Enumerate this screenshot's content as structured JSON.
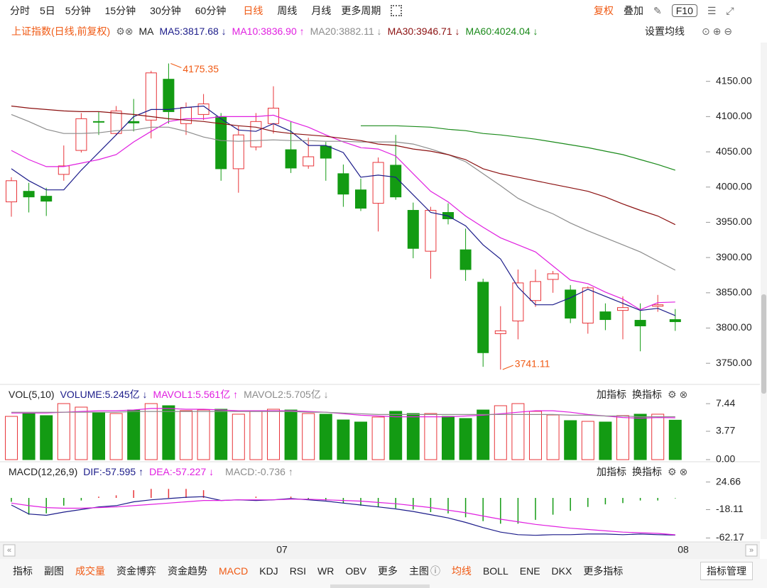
{
  "toolbar": {
    "periods": [
      "分时",
      "5日",
      "5分钟",
      "15分钟",
      "30分钟",
      "60分钟",
      "日线",
      "周线",
      "月线",
      "更多周期"
    ],
    "right": [
      "复权",
      "叠加",
      "F10"
    ]
  },
  "chart_data": [
    {
      "type": "candlestick",
      "title": "上证指数(日线,前复权)",
      "ma_label": "MA",
      "settings_label": "设置均线",
      "open": [
        3979,
        3994,
        3987,
        4018,
        4052,
        4093,
        4076,
        4093,
        4095,
        4153,
        4090,
        4103,
        4100,
        4026,
        4057,
        4090,
        4053,
        4030,
        4058,
        4019,
        3996,
        3977,
        4031,
        3967,
        3909,
        3964,
        3911,
        3865,
        3792,
        3810,
        3839,
        3869,
        3854,
        3807,
        3823,
        3825,
        3811,
        3831,
        3812
      ],
      "high": [
        4014,
        4006,
        3999,
        4059,
        4105,
        4107,
        4115,
        4125,
        4165,
        4175.35,
        4120,
        4132,
        4105,
        4087,
        4105,
        4143,
        4093,
        4070,
        4064,
        4032,
        4012,
        4042,
        4074,
        3978,
        3972,
        3977,
        3941,
        3870,
        3831,
        3883,
        3883,
        3881,
        3861,
        3859,
        3835,
        3845,
        3835,
        3847,
        3827
      ],
      "low": [
        3958,
        3964,
        3959,
        4009,
        4049,
        4074,
        4074,
        4079,
        4069,
        4090,
        4074,
        4095,
        4009,
        3992,
        4052,
        4076,
        4020,
        4026,
        4009,
        3972,
        3966,
        3937,
        3982,
        3899,
        3870,
        3947,
        3867,
        3745,
        3741.11,
        3784,
        3830,
        3850,
        3807,
        3792,
        3797,
        3784,
        3767,
        3823,
        3796
      ],
      "close": [
        4009,
        3986,
        3980,
        4030,
        4097,
        4092,
        4108,
        4091,
        4162,
        4107,
        4113,
        4118,
        4026,
        4074,
        4093,
        4112,
        4027,
        4043,
        4041,
        3990,
        3970,
        4035,
        3986,
        3913,
        3967,
        3955,
        3883,
        3765,
        3796,
        3864,
        3866,
        3877,
        3814,
        3857,
        3812,
        3829,
        3803,
        3833,
        3809
      ],
      "up_color": "#e8353a",
      "down_color": "#139b13",
      "annotations": [
        "4175.35",
        "3741.11"
      ],
      "series": [
        {
          "name": "MA5:3817.68 ↓",
          "color": "#1c1c8a",
          "values": [
            4026,
            4009,
            3996,
            3996,
            4024,
            4049,
            4074,
            4100,
            4110,
            4110,
            4113,
            4115,
            4097,
            4081,
            4079,
            4090,
            4079,
            4059,
            4059,
            4049,
            4014,
            4017,
            4014,
            3989,
            3964,
            3959,
            3945,
            3918,
            3898,
            3858,
            3833,
            3833,
            3843,
            3855,
            3845,
            3835,
            3825,
            3828,
            3817.68
          ]
        },
        {
          "name": "MA10:3836.90 ↑",
          "color": "#e01fe0",
          "values": [
            4052,
            4039,
            4029,
            4029,
            4034,
            4039,
            4046,
            4064,
            4079,
            4093,
            4097,
            4097,
            4100,
            4100,
            4100,
            4102,
            4093,
            4085,
            4074,
            4064,
            4056,
            4054,
            4044,
            4019,
            3994,
            3979,
            3959,
            3943,
            3928,
            3918,
            3908,
            3888,
            3868,
            3863,
            3851,
            3841,
            3826,
            3836,
            3836.9
          ]
        },
        {
          "name": "MA20:3882.11 ↓",
          "color": "#8c8c8c",
          "values": [
            4103,
            4093,
            4082,
            4076,
            4076,
            4077,
            4080,
            4081,
            4085,
            4085,
            4079,
            4071,
            4066,
            4065,
            4066,
            4067,
            4066,
            4066,
            4065,
            4065,
            4064,
            4064,
            4064,
            4061,
            4054,
            4046,
            4036,
            4019,
            4002,
            3984,
            3972,
            3962,
            3949,
            3938,
            3928,
            3918,
            3908,
            3895,
            3882.11
          ]
        },
        {
          "name": "MA30:3946.71 ↓",
          "color": "#8b1010",
          "values": [
            4115,
            4112,
            4110,
            4108,
            4107,
            4107,
            4105,
            4103,
            4100,
            4097,
            4095,
            4093,
            4090,
            4087,
            4085,
            4079,
            4076,
            4074,
            4072,
            4069,
            4066,
            4061,
            4059,
            4054,
            4051,
            4046,
            4039,
            4026,
            4019,
            4014,
            4009,
            4004,
            3999,
            3994,
            3986,
            3976,
            3967,
            3959,
            3946.71
          ]
        },
        {
          "name": "MA60:4024.04 ↓",
          "color": "#1a8a1a",
          "values": [
            null,
            null,
            null,
            null,
            null,
            null,
            null,
            null,
            null,
            null,
            null,
            null,
            null,
            null,
            null,
            null,
            null,
            null,
            null,
            null,
            4087,
            4087,
            4087,
            4086,
            4085,
            4082,
            4080,
            4076,
            4074,
            4071,
            4068,
            4064,
            4060,
            4056,
            4051,
            4046,
            4039,
            4032,
            4024.04
          ]
        }
      ],
      "ylim": [
        3722,
        4200
      ],
      "yticks": [
        {
          "value": 3750,
          "label": "3750.00"
        },
        {
          "value": 3800,
          "label": "3800.00"
        },
        {
          "value": 3850,
          "label": "3850.00"
        },
        {
          "value": 3900,
          "label": "3900.00"
        },
        {
          "value": 3950,
          "label": "3950.00"
        },
        {
          "value": 4000,
          "label": "4000.00"
        },
        {
          "value": 4050,
          "label": "4050.00"
        },
        {
          "value": 4100,
          "label": "4100.00"
        },
        {
          "value": 4150,
          "label": "4150.00"
        }
      ],
      "x_labels": [
        "07",
        "08"
      ]
    },
    {
      "type": "volume",
      "title": "VOL(5,10)",
      "name": "VOLUME:5.245亿 ↓",
      "color": "#1c1c8a",
      "values": [
        5.75,
        6.13,
        5.85,
        7.45,
        6.98,
        6.23,
        6.13,
        6.6,
        7.45,
        7.17,
        6.51,
        6.6,
        6.7,
        6.04,
        6.42,
        6.7,
        6.6,
        6.13,
        6.04,
        5.28,
        5.0,
        5.66,
        6.42,
        6.13,
        6.13,
        5.75,
        5.47,
        6.6,
        7.17,
        7.45,
        6.42,
        5.94,
        5.19,
        5.09,
        5.0,
        5.85,
        6.04,
        6.04,
        5.245
      ],
      "series": [
        {
          "name": "MAVOL1:5.561亿 ↑",
          "color": "#e01fe0",
          "values": [
            6.2,
            6.2,
            6.2,
            6.3,
            6.4,
            6.5,
            6.5,
            6.6,
            6.8,
            6.8,
            6.7,
            6.7,
            6.6,
            6.5,
            6.5,
            6.5,
            6.5,
            6.4,
            6.3,
            6.1,
            5.9,
            5.8,
            5.7,
            5.7,
            5.7,
            5.7,
            5.8,
            5.9,
            6.1,
            6.3,
            6.5,
            6.5,
            6.3,
            6.0,
            5.8,
            5.6,
            5.5,
            5.6,
            5.561
          ]
        },
        {
          "name": "MAVOL2:5.705亿 ↓",
          "color": "#8c8c8c",
          "values": [
            6.3,
            6.3,
            6.3,
            6.3,
            6.3,
            6.3,
            6.3,
            6.4,
            6.4,
            6.4,
            6.4,
            6.4,
            6.4,
            6.4,
            6.4,
            6.4,
            6.4,
            6.3,
            6.3,
            6.2,
            6.1,
            6.0,
            6.0,
            6.0,
            6.0,
            6.0,
            6.0,
            6.0,
            6.0,
            6.0,
            6.0,
            6.0,
            5.9,
            5.9,
            5.8,
            5.8,
            5.7,
            5.7,
            5.705
          ]
        }
      ],
      "ylim": [
        0,
        8.3
      ],
      "yticks": [
        {
          "value": 0,
          "label": "0.00"
        },
        3.77,
        7.44
      ],
      "buttons": [
        "加指标",
        "换指标"
      ]
    },
    {
      "type": "macd",
      "title": "MACD(12,26,9)",
      "hist_name": "MACD:-0.736 ↑",
      "hist_color": "#8c8c8c",
      "hist": [
        -6,
        -26,
        -24,
        -12,
        -4,
        2,
        4,
        12,
        14,
        14,
        14,
        12,
        0,
        0,
        2,
        0,
        2,
        -2,
        -4,
        -8,
        -12,
        -14,
        -16,
        -18,
        -22,
        -24,
        -30,
        -36,
        -40,
        -40,
        -34,
        -26,
        -20,
        -14,
        -10,
        -8,
        -4,
        -4,
        -0.736
      ],
      "series": [
        {
          "name": "DIF:-57.595 ↑",
          "color": "#1c1c8a",
          "values": [
            -11,
            -25,
            -27,
            -22,
            -18,
            -14,
            -12,
            -6,
            -3,
            -1,
            1,
            2,
            -4,
            -3,
            -4,
            -3,
            -1,
            -3,
            -5,
            -8,
            -11,
            -14,
            -17,
            -21,
            -26,
            -31,
            -38,
            -46,
            -53,
            -57,
            -58,
            -57,
            -57,
            -56,
            -56,
            -57,
            -56,
            -57,
            -57.595
          ]
        },
        {
          "name": "DEA:-57.227 ↓",
          "color": "#e01fe0",
          "values": [
            -8,
            -12,
            -15,
            -16,
            -16,
            -15,
            -14,
            -12,
            -10,
            -8,
            -6,
            -4,
            -4,
            -3,
            -3,
            -3,
            -2,
            -2,
            -3,
            -4,
            -5,
            -7,
            -9,
            -12,
            -15,
            -19,
            -23,
            -28,
            -33,
            -37,
            -41,
            -44,
            -47,
            -49,
            -51,
            -53,
            -54,
            -55,
            -57.227
          ]
        }
      ],
      "ylim": [
        -66,
        33
      ],
      "yticks": [
        -62.17,
        -18.11,
        24.66
      ],
      "buttons": [
        "加指标",
        "换指标"
      ]
    }
  ],
  "footer": {
    "sub_label": "指标",
    "sub_label2": "副图",
    "sub_items": [
      "成交量",
      "资金博弈",
      "资金趋势",
      "MACD",
      "KDJ",
      "RSI",
      "WR",
      "OBV",
      "更多"
    ],
    "main_label": "主图",
    "main_items": [
      "均线",
      "BOLL",
      "ENE",
      "DKX",
      "更多指标"
    ],
    "manage": "指标管理"
  }
}
